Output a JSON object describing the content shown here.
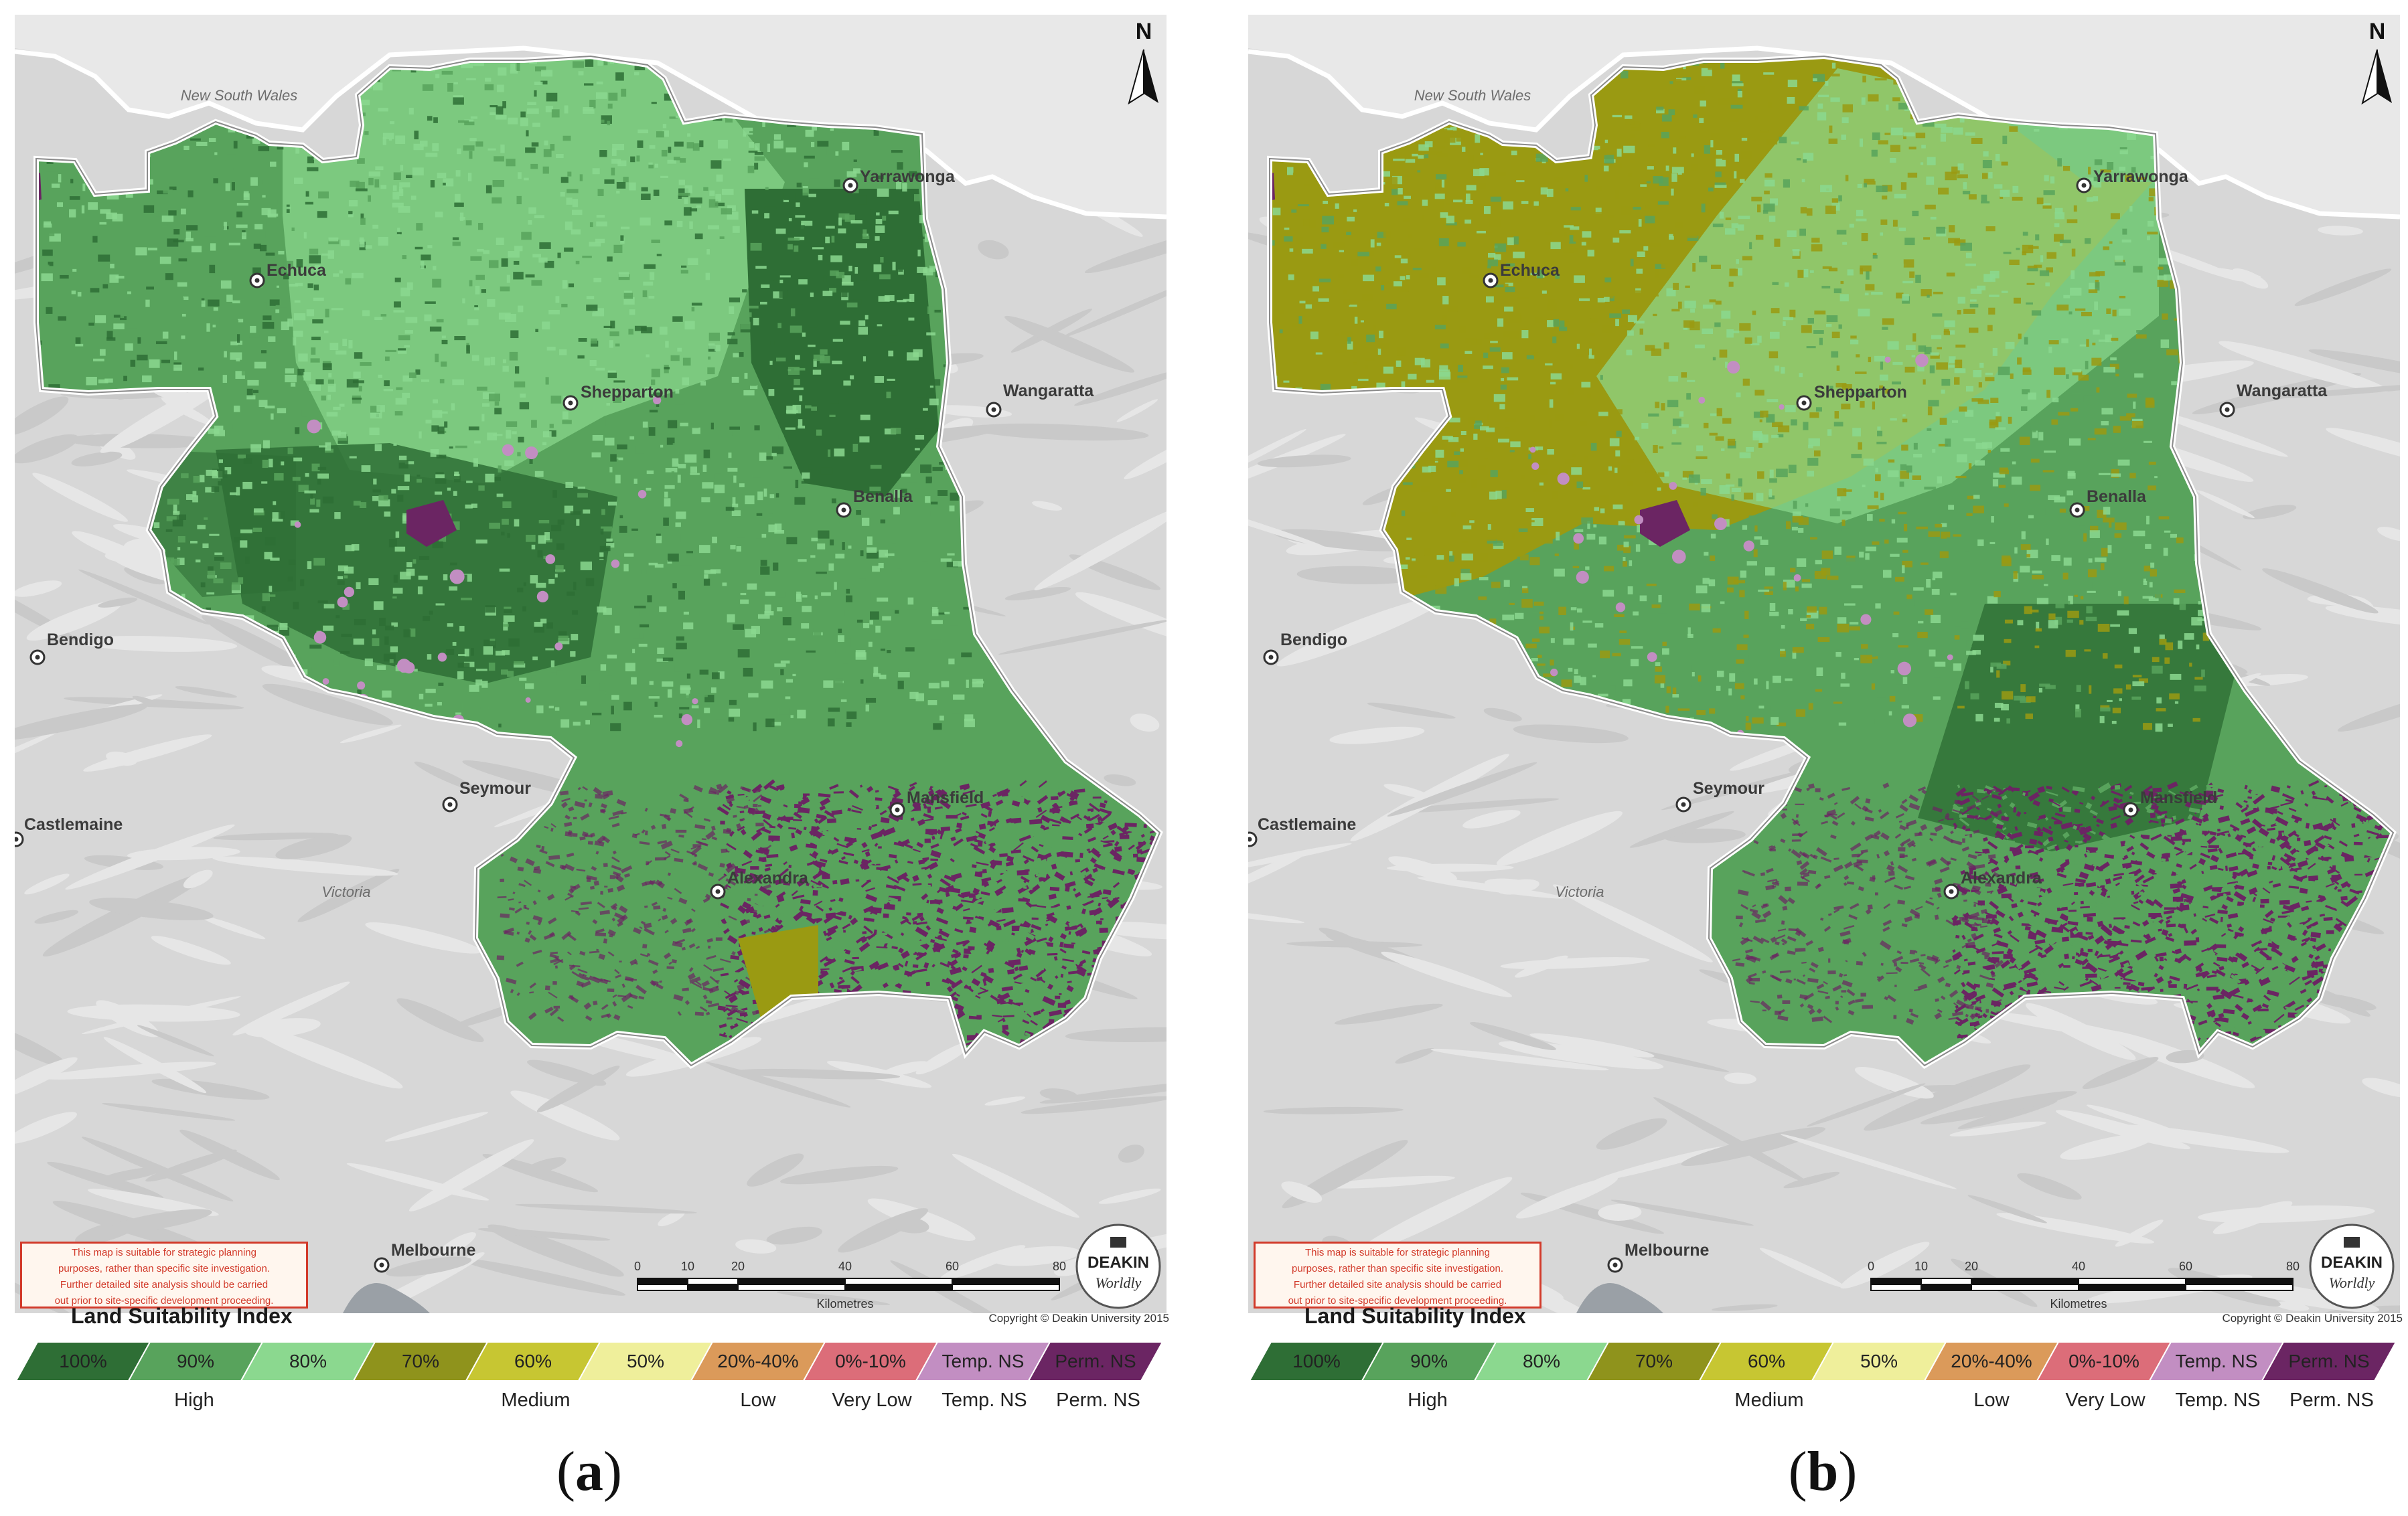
{
  "panels": [
    {
      "label_letter": "a",
      "places": [
        "Yarrawonga",
        "Echuca",
        "Shepparton",
        "Wangaratta",
        "Benalla",
        "Bendigo",
        "Seymour",
        "Mansfield",
        "Castlemaine",
        "Alexandra",
        "Melbourne"
      ],
      "regions": [
        "New South Wales",
        "Victoria"
      ],
      "north": "N",
      "disclaimer": [
        "This map is suitable for strategic planning",
        "purposes, rather than specific site investigation.",
        "Further detailed site analysis should be carried",
        "out prior to site-specific development proceeding."
      ],
      "scale_ticks": [
        "0",
        "10",
        "20",
        "40",
        "60",
        "80"
      ],
      "scale_unit": "Kilometres",
      "logo_top": "DEAKIN",
      "logo_bottom": "Worldly",
      "copyright": "Copyright © Deakin University 2015",
      "legend_title": "Land Suitability Index",
      "dominant_class": "90%"
    },
    {
      "label_letter": "b",
      "places": [
        "Yarrawonga",
        "Echuca",
        "Shepparton",
        "Wangaratta",
        "Benalla",
        "Bendigo",
        "Seymour",
        "Mansfield",
        "Castlemaine",
        "Alexandra",
        "Melbourne"
      ],
      "regions": [
        "New South Wales",
        "Victoria"
      ],
      "north": "N",
      "disclaimer": [
        "This map is suitable for strategic planning",
        "purposes, rather than specific site investigation.",
        "Further detailed site analysis should be carried",
        "out prior to site-specific development proceeding."
      ],
      "scale_ticks": [
        "0",
        "10",
        "20",
        "40",
        "60",
        "80"
      ],
      "scale_unit": "Kilometres",
      "logo_top": "DEAKIN",
      "logo_bottom": "Worldly",
      "copyright": "Copyright © Deakin University 2015",
      "legend_title": "Land Suitability Index",
      "dominant_class": "70%"
    }
  ],
  "legend": {
    "classes": [
      {
        "label": "100%",
        "color": "#2e6e35"
      },
      {
        "label": "90%",
        "color": "#58a35c"
      },
      {
        "label": "80%",
        "color": "#8bd88f"
      },
      {
        "label": "70%",
        "color": "#8f931c"
      },
      {
        "label": "60%",
        "color": "#c7c632"
      },
      {
        "label": "50%",
        "color": "#efef9b"
      },
      {
        "label": "20%-40%",
        "color": "#db9a5a"
      },
      {
        "label": "0%-10%",
        "color": "#dc6d79"
      },
      {
        "label": "Temp. NS",
        "color": "#c28ec2"
      },
      {
        "label": "Perm. NS",
        "color": "#6b2563"
      }
    ],
    "groups": [
      "High",
      "Medium",
      "Low",
      "Very Low",
      "Temp. NS",
      "Perm. NS"
    ]
  },
  "map_colors": {
    "c100": "#2e6e35",
    "c90": "#58a35c",
    "c80": "#8bd88f",
    "c70": "#9a9a12",
    "c_perm": "#6b2563",
    "c_temp": "#c28ec2",
    "nsw": "#e8e8e8",
    "terrain": "#d7d7d7",
    "border": "#ffffff"
  }
}
